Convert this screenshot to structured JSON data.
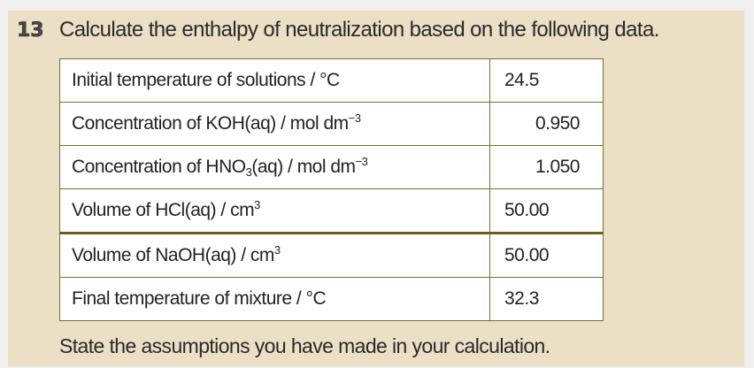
{
  "question": {
    "number": "13",
    "prompt": "Calculate the enthalpy of neutralization based on the following data."
  },
  "table": {
    "rows": [
      {
        "label": "Initial temperature of solutions / °C",
        "label_main": "Initial temperature of solutions / °C",
        "value": "24.5",
        "align": "left"
      },
      {
        "label_main": "Concentration of KOH(aq) / mol dm",
        "label_sup": "−3",
        "value": "0.950",
        "align": "right"
      },
      {
        "label_pre": "Concentration of HNO",
        "label_sub": "3",
        "label_post": "(aq) / mol dm",
        "label_sup": "−3",
        "value": "1.050",
        "align": "right"
      },
      {
        "label_main": "Volume of HCl(aq) / cm",
        "label_sup": "3",
        "value": "50.00",
        "align": "left"
      },
      {
        "label_main": "Volume of NaOH(aq) / cm",
        "label_sup": "3",
        "value": "50.00",
        "align": "left"
      },
      {
        "label_main": "Final temperature of mixture / °C",
        "value": "32.3",
        "align": "left"
      }
    ]
  },
  "footer": {
    "instruction": "State the assumptions you have made in your calculation."
  },
  "colors": {
    "page_background": "#f0f0f0",
    "panel_background": "#ebe0c6",
    "table_border": "#7a6e30",
    "table_background": "#ffffff",
    "text": "#2a2a2a"
  }
}
